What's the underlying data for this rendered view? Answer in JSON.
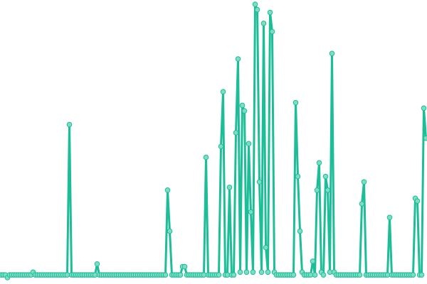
{
  "chart_data": {
    "type": "line",
    "ylim": [
      0,
      100
    ],
    "series": [
      {
        "color": "#1dbd98",
        "values": [
          1,
          1,
          1,
          0,
          1,
          1,
          1,
          1,
          1,
          1,
          1,
          1,
          1,
          1,
          1,
          2,
          1,
          1,
          1,
          1,
          1,
          1,
          1,
          1,
          1,
          1,
          1,
          1,
          1,
          1,
          1,
          1,
          56,
          1,
          1,
          1,
          1,
          1,
          1,
          1,
          1,
          1,
          1,
          1,
          1,
          5,
          1,
          1,
          1,
          1,
          1,
          1,
          1,
          1,
          1,
          1,
          1,
          1,
          1,
          1,
          1,
          1,
          1,
          1,
          1,
          1,
          1,
          1,
          1,
          1,
          1,
          1,
          1,
          1,
          1,
          1,
          1,
          1,
          32,
          17,
          1,
          1,
          1,
          1,
          1,
          4,
          4,
          1,
          1,
          1,
          1,
          1,
          1,
          1,
          1,
          1,
          44,
          1,
          1,
          1,
          1,
          1,
          1,
          48,
          68,
          1,
          1,
          33,
          1,
          1,
          53,
          80,
          2,
          63,
          61,
          2,
          49,
          24,
          2,
          100,
          98,
          35,
          2,
          93,
          11,
          2,
          97,
          90,
          2,
          1,
          1,
          1,
          1,
          1,
          1,
          1,
          1,
          1,
          64,
          37,
          17,
          2,
          1,
          1,
          1,
          1,
          6,
          1,
          32,
          42,
          2,
          1,
          37,
          32,
          2,
          82,
          2,
          1,
          1,
          1,
          1,
          1,
          1,
          1,
          1,
          1,
          1,
          1,
          1,
          27,
          35,
          1,
          1,
          1,
          1,
          1,
          1,
          1,
          1,
          1,
          1,
          1,
          22,
          1,
          1,
          1,
          1,
          1,
          1,
          1,
          1,
          1,
          1,
          1,
          29,
          28,
          1,
          1,
          62,
          51
        ]
      }
    ]
  }
}
